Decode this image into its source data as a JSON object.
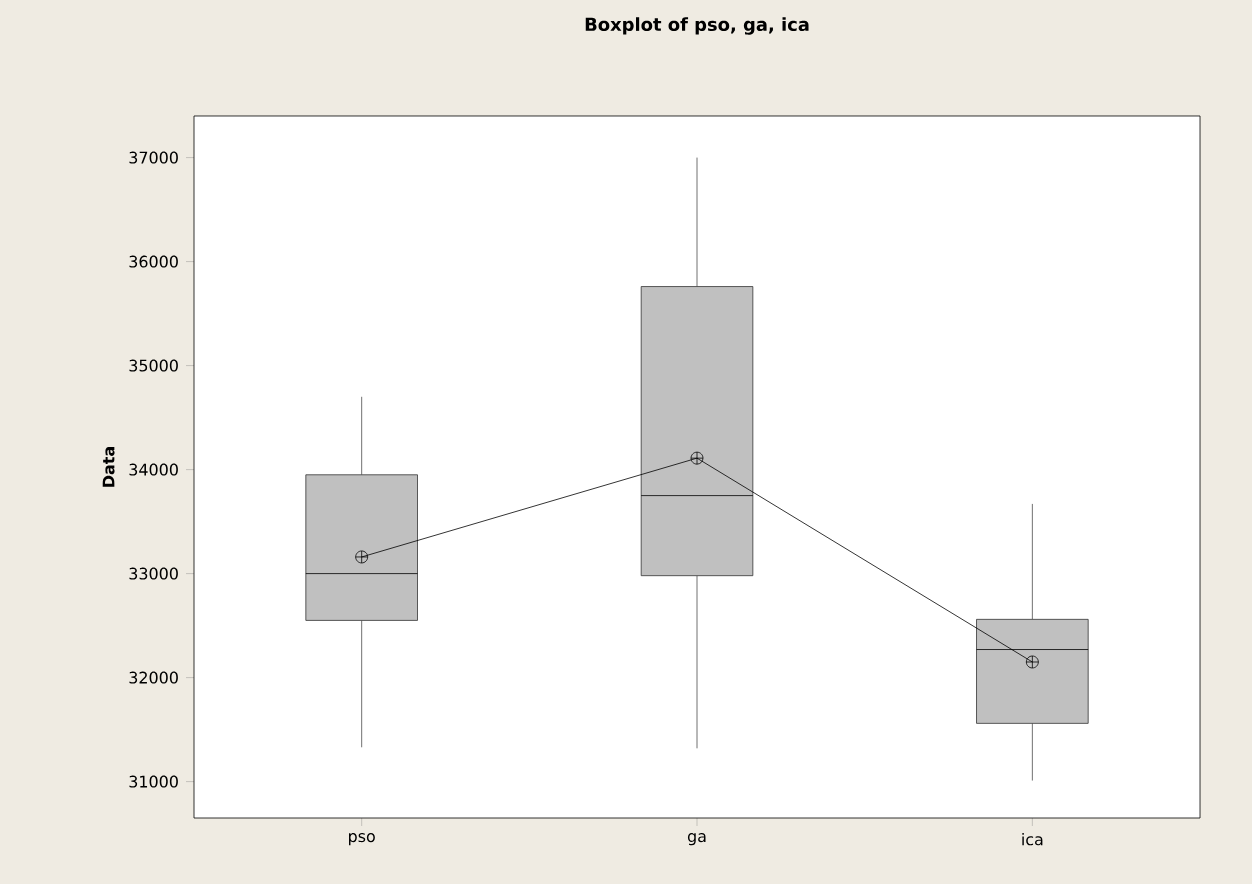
{
  "chart_data": {
    "type": "box",
    "title": "Boxplot of pso, ga, ica",
    "ylabel": "Data",
    "categories": [
      "pso",
      "ga",
      "ica"
    ],
    "ylim": [
      30650,
      37400
    ],
    "yticks": [
      31000,
      32000,
      33000,
      34000,
      35000,
      36000,
      37000
    ],
    "series": [
      {
        "type": "box",
        "color": "#c0c0c0",
        "boxes": [
          {
            "low": 31330,
            "q1": 32550,
            "median": 33000,
            "q3": 33950,
            "high": 34700
          },
          {
            "low": 31320,
            "q1": 32980,
            "median": 33750,
            "q3": 35760,
            "high": 37000
          },
          {
            "low": 31010,
            "q1": 31560,
            "median": 32270,
            "q3": 32560,
            "high": 33670
          }
        ]
      },
      {
        "type": "line",
        "color": "#000000",
        "marker": "cross",
        "values": [
          33160,
          34110,
          32150
        ]
      }
    ]
  }
}
